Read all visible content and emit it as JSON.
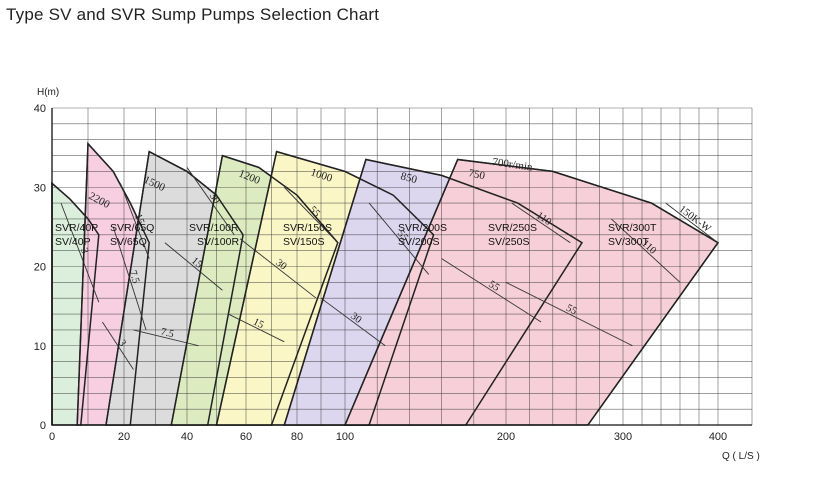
{
  "title": "Type SV and SVR Sump Pumps Selection Chart",
  "chart_data": {
    "type": "area",
    "title": "Type SV and SVR Sump Pumps Selection Chart",
    "ylabel": "H(m)",
    "xlabel": "Q ( L/S )",
    "y_ticks": [
      "0",
      "10",
      "20",
      "30",
      "40"
    ],
    "x_ticks": [
      "0",
      "20",
      "40",
      "60",
      "80",
      "100",
      "200",
      "300",
      "400"
    ],
    "grid": true,
    "regions": [
      {
        "name": "SV/40P",
        "model_labels": [
          "SVR/40P",
          "SV/40P"
        ],
        "color": "#dcefdc",
        "speed_label": "",
        "top_curve": [
          [
            0,
            30.5
          ],
          [
            5,
            28.5
          ],
          [
            10,
            26
          ],
          [
            13,
            24
          ]
        ],
        "left_edge": [
          [
            0,
            30.5
          ],
          [
            0,
            0
          ]
        ],
        "right_edge": [
          [
            13,
            24
          ],
          [
            8,
            0
          ]
        ],
        "iso_power": [
          {
            "label": "3",
            "points": [
              [
                2.5,
                28
              ],
              [
                13,
                15.5
              ]
            ]
          }
        ]
      },
      {
        "name": "SV/65Q",
        "model_labels": [
          "SVR/65Q",
          "SV/65Q"
        ],
        "color": "#f7cfe0",
        "speed_label": "2200",
        "top_curve": [
          [
            10,
            35.5
          ],
          [
            17,
            32
          ],
          [
            22,
            28
          ],
          [
            28,
            23
          ]
        ],
        "left_edge": [
          [
            10,
            35.5
          ],
          [
            7,
            0
          ]
        ],
        "right_edge": [
          [
            28,
            23
          ],
          [
            22,
            0
          ]
        ],
        "iso_power": [
          {
            "label": "15",
            "points": [
              [
                19,
                30.5
              ],
              [
                28,
                21
              ]
            ]
          },
          {
            "label": "7.5",
            "points": [
              [
                17,
                25
              ],
              [
                27,
                12
              ]
            ]
          },
          {
            "label": "3",
            "points": [
              [
                14,
                13
              ],
              [
                23,
                7
              ]
            ]
          }
        ]
      },
      {
        "name": "SV/100R",
        "model_labels": [
          "SVR/100R",
          "SV/100R"
        ],
        "color": "#dcdcdc",
        "speed_label": "1500",
        "top_curve": [
          [
            28,
            34.5
          ],
          [
            40,
            32
          ],
          [
            50,
            29
          ],
          [
            59,
            24
          ]
        ],
        "left_edge": [
          [
            28,
            34.5
          ],
          [
            15,
            0
          ]
        ],
        "right_edge": [
          [
            59,
            24
          ],
          [
            47,
            0
          ]
        ],
        "iso_power": [
          {
            "label": "30",
            "points": [
              [
                40,
                32.5
              ],
              [
                56,
                24
              ]
            ]
          },
          {
            "label": "15",
            "points": [
              [
                33,
                23
              ],
              [
                52,
                17
              ]
            ]
          },
          {
            "label": "7.5",
            "points": [
              [
                23,
                12
              ],
              [
                44,
                10
              ]
            ]
          }
        ]
      },
      {
        "name": "SV/150S",
        "model_labels": [
          "SVR/150S",
          "SV/150S"
        ],
        "color": "#dcebc0",
        "speed_label": "1200",
        "top_curve": [
          [
            52,
            34
          ],
          [
            65,
            32.5
          ],
          [
            80,
            29
          ],
          [
            97,
            23
          ]
        ],
        "left_edge": [
          [
            52,
            34
          ],
          [
            35,
            0
          ]
        ],
        "right_edge": [
          [
            97,
            23
          ],
          [
            70,
            0
          ]
        ],
        "iso_power": [
          {
            "label": "55",
            "points": [
              [
                75,
                30
              ],
              [
                97,
                23
              ]
            ]
          },
          {
            "label": "30",
            "points": [
              [
                58,
                23.5
              ],
              [
                88,
                16
              ]
            ]
          },
          {
            "label": "15",
            "points": [
              [
                54,
                14
              ],
              [
                75,
                10.5
              ]
            ]
          }
        ]
      },
      {
        "name": "SV/200S",
        "model_labels": [
          "SVR/200S",
          "SV/200S"
        ],
        "color": "#fbf6c6",
        "speed_label": "1000",
        "top_curve": [
          [
            72,
            34.5
          ],
          [
            100,
            32
          ],
          [
            130,
            29
          ],
          [
            155,
            24
          ]
        ],
        "left_edge": [
          [
            72,
            34.5
          ],
          [
            50,
            0
          ]
        ],
        "right_edge": [
          [
            155,
            24
          ],
          [
            115,
            0
          ]
        ],
        "iso_power": [
          {
            "label": "55",
            "points": [
              [
                115,
                28
              ],
              [
                152,
                19
              ]
            ]
          },
          {
            "label": "30",
            "points": [
              [
                90,
                16
              ],
              [
                125,
                10
              ]
            ]
          }
        ]
      },
      {
        "name": "SV/250S",
        "model_labels": [
          "SVR/250S",
          "SV/250S"
        ],
        "color": "#dcd6ee",
        "speed_label": "850",
        "top_curve": [
          [
            113,
            33.5
          ],
          [
            160,
            31.5
          ],
          [
            210,
            28
          ],
          [
            265,
            23
          ]
        ],
        "left_edge": [
          [
            113,
            33.5
          ],
          [
            75,
            0
          ]
        ],
        "right_edge": [
          [
            265,
            23
          ],
          [
            175,
            0
          ]
        ],
        "iso_power": [
          {
            "label": "110",
            "points": [
              [
                205,
                28
              ],
              [
                255,
                23
              ]
            ]
          },
          {
            "label": "55",
            "points": [
              [
                160,
                21
              ],
              [
                230,
                13
              ]
            ]
          }
        ]
      },
      {
        "name": "SV/300T",
        "model_labels": [
          "SVR/300T",
          "SV/300T"
        ],
        "color": "#f6cfd8",
        "speed_label": "750",
        "top_curve": [
          [
            170,
            33.5
          ],
          [
            240,
            32
          ],
          [
            330,
            28
          ],
          [
            400,
            23
          ]
        ],
        "left_edge": [
          [
            170,
            33.5
          ],
          [
            100,
            0
          ]
        ],
        "right_edge": [
          [
            400,
            23
          ],
          [
            270,
            0
          ]
        ],
        "iso_power": [
          {
            "label": "150K-W",
            "points": [
              [
                345,
                28
              ],
              [
                400,
                23
              ]
            ]
          },
          {
            "label": "110",
            "points": [
              [
                290,
                26
              ],
              [
                360,
                18
              ]
            ]
          },
          {
            "label": "55",
            "points": [
              [
                200,
                18
              ],
              [
                310,
                10
              ]
            ]
          }
        ]
      }
    ],
    "top_speed_label": "700r/min"
  }
}
